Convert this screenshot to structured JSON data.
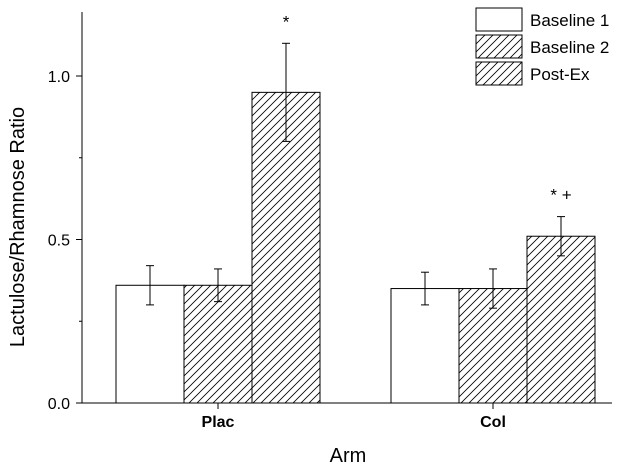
{
  "chart_data": {
    "type": "bar",
    "xlabel": "Arm",
    "ylabel": "Lactulose/Rhamnose Ratio",
    "categories": [
      "Plac",
      "Col"
    ],
    "series": [
      {
        "name": "Baseline 1",
        "pattern": "none",
        "values": [
          0.36,
          0.35
        ],
        "errors": [
          0.06,
          0.05
        ]
      },
      {
        "name": "Baseline 2",
        "pattern": "hatch",
        "values": [
          0.36,
          0.35
        ],
        "errors": [
          0.05,
          0.06
        ]
      },
      {
        "name": "Post-Ex",
        "pattern": "hatch",
        "values": [
          0.95,
          0.51
        ],
        "errors": [
          0.15,
          0.06
        ]
      }
    ],
    "ylim": [
      0,
      1.2
    ],
    "yticks": [
      0.0,
      0.5,
      1.0
    ],
    "ytick_labels": [
      "0.0",
      "0.5",
      "1.0"
    ],
    "annotations": [
      {
        "category": "Plac",
        "series": "Post-Ex",
        "text": "*"
      },
      {
        "category": "Col",
        "series": "Post-Ex",
        "text": "* +"
      }
    ],
    "legend_position": "top-right",
    "grid": false
  },
  "colors": {
    "bar_fill": "#ffffff",
    "stroke": "#000000"
  }
}
